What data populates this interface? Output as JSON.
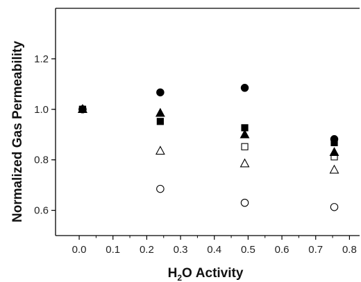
{
  "chart_data": {
    "type": "scatter",
    "title": "",
    "xlabel": "Activity",
    "xlabel_formula": {
      "prefix": "H",
      "subscript": "2",
      "suffix": "O"
    },
    "ylabel": "Normalized Gas Permeability",
    "xlim": [
      -0.07,
      0.83
    ],
    "ylim": [
      0.5,
      1.4
    ],
    "x_ticks": [
      0.0,
      0.1,
      0.2,
      0.3,
      0.4,
      0.5,
      0.6,
      0.7,
      0.8
    ],
    "x_tick_labels": [
      "0.0",
      "0.1",
      "0.2",
      "0.3",
      "0.4",
      "0.5",
      "0.6",
      "0.7",
      "0.8"
    ],
    "y_ticks": [
      0.6,
      0.8,
      1.0,
      1.2
    ],
    "y_tick_labels": [
      "0.6",
      "0.8",
      "1.0",
      "1.2"
    ],
    "grid": false,
    "legend": "none",
    "series": [
      {
        "marker": "circle-filled",
        "x": [
          0.01,
          0.24,
          0.49,
          0.755
        ],
        "y": [
          1.0,
          1.067,
          1.085,
          0.882
        ]
      },
      {
        "marker": "square-filled",
        "x": [
          0.01,
          0.24,
          0.49,
          0.755
        ],
        "y": [
          1.0,
          0.952,
          0.927,
          0.868
        ]
      },
      {
        "marker": "triangle-filled",
        "x": [
          0.01,
          0.24,
          0.49,
          0.755
        ],
        "y": [
          1.0,
          0.985,
          0.9,
          0.83
        ]
      },
      {
        "marker": "square-open",
        "x": [
          0.01,
          0.24,
          0.49,
          0.755
        ],
        "y": [
          1.0,
          null,
          0.852,
          0.812
        ]
      },
      {
        "marker": "triangle-open",
        "x": [
          0.01,
          0.24,
          0.49,
          0.755
        ],
        "y": [
          1.0,
          0.835,
          0.785,
          0.76
        ]
      },
      {
        "marker": "circle-open",
        "x": [
          0.01,
          0.24,
          0.49,
          0.755
        ],
        "y": [
          1.0,
          0.685,
          0.63,
          0.613
        ]
      }
    ],
    "colors": {
      "marker": "#000000",
      "axis": "#000000"
    }
  }
}
